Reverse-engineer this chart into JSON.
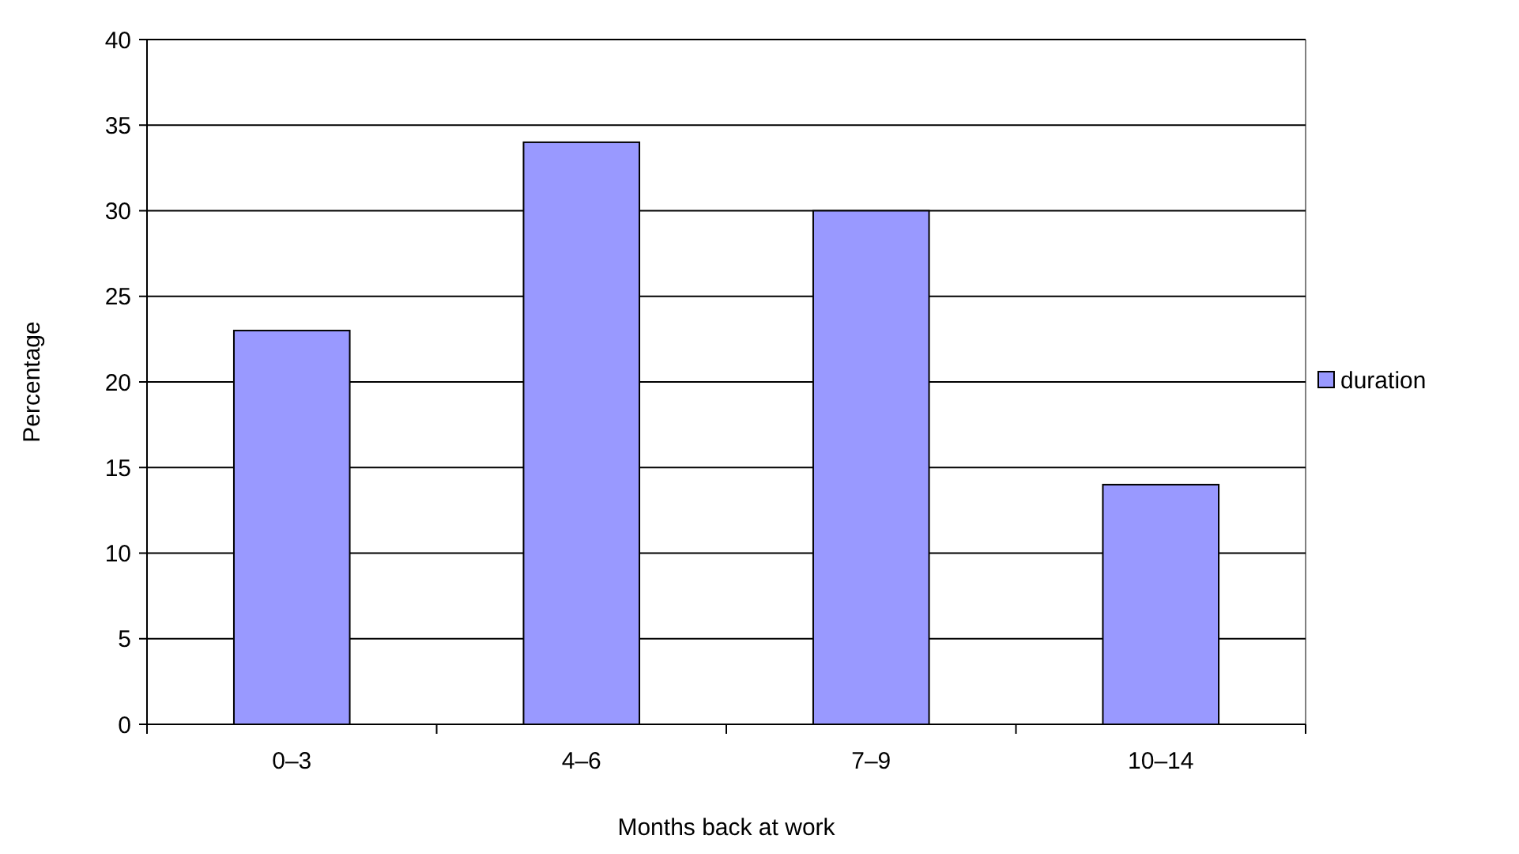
{
  "chart_data": {
    "type": "bar",
    "xlabel": "Months back at work",
    "ylabel": "Percentage",
    "categories": [
      "0–3",
      "4–6",
      "7–9",
      "10–14"
    ],
    "series": [
      {
        "name": "duration",
        "color": "#9999ff",
        "values": [
          23,
          34,
          30,
          14
        ]
      }
    ],
    "ylim": [
      0,
      40
    ],
    "yticks": [
      0,
      5,
      10,
      15,
      20,
      25,
      30,
      35,
      40
    ],
    "grid": "y",
    "legend": "right"
  }
}
